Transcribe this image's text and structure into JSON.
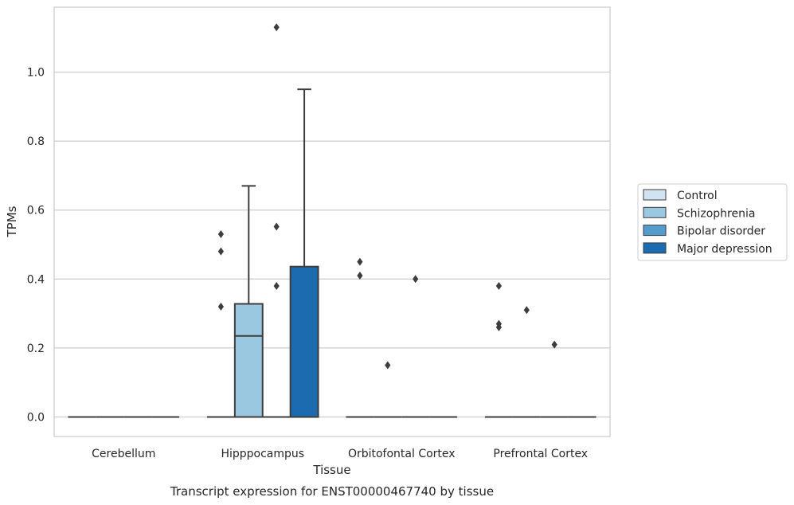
{
  "chart_data": {
    "type": "box",
    "xlabel": "Tissue",
    "ylabel": "TPMs",
    "caption": "Transcript expression for ENST00000467740 by tissue",
    "ylim": [
      -0.055,
      1.19
    ],
    "yticks": [
      "0.0",
      "0.2",
      "0.4",
      "0.6",
      "0.8",
      "1.0"
    ],
    "ytick_values": [
      0.0,
      0.2,
      0.4,
      0.6,
      0.8,
      1.0
    ],
    "grid": "horizontal",
    "legend_position": "right",
    "categories": [
      "Cerebellum",
      "Hipppocampus",
      "Orbitofontal Cortex",
      "Prefrontal Cortex"
    ],
    "series": [
      {
        "name": "Control",
        "color": "#d1e3f3"
      },
      {
        "name": "Schizophrenia",
        "color": "#9ac8e0"
      },
      {
        "name": "Bipolar disorder",
        "color": "#529dcc"
      },
      {
        "name": "Major depression",
        "color": "#1c6aaf"
      }
    ],
    "boxes": [
      {
        "category": "Cerebellum",
        "series": "Control",
        "q1": 0,
        "median": 0,
        "q3": 0,
        "whisker_low": 0,
        "whisker_high": 0,
        "outliers": []
      },
      {
        "category": "Cerebellum",
        "series": "Schizophrenia",
        "q1": 0,
        "median": 0,
        "q3": 0,
        "whisker_low": 0,
        "whisker_high": 0,
        "outliers": []
      },
      {
        "category": "Cerebellum",
        "series": "Bipolar disorder",
        "q1": 0,
        "median": 0,
        "q3": 0,
        "whisker_low": 0,
        "whisker_high": 0,
        "outliers": []
      },
      {
        "category": "Cerebellum",
        "series": "Major depression",
        "q1": 0,
        "median": 0,
        "q3": 0,
        "whisker_low": 0,
        "whisker_high": 0,
        "outliers": []
      },
      {
        "category": "Hipppocampus",
        "series": "Control",
        "q1": 0,
        "median": 0,
        "q3": 0,
        "whisker_low": 0,
        "whisker_high": 0,
        "outliers": [
          0.32,
          0.48,
          0.53
        ]
      },
      {
        "category": "Hipppocampus",
        "series": "Schizophrenia",
        "q1": 0,
        "median": 0.235,
        "q3": 0.328,
        "whisker_low": 0,
        "whisker_high": 0.67,
        "outliers": []
      },
      {
        "category": "Hipppocampus",
        "series": "Bipolar disorder",
        "q1": 0,
        "median": 0,
        "q3": 0,
        "whisker_low": 0,
        "whisker_high": 0,
        "outliers": [
          0.38,
          0.552,
          1.13
        ]
      },
      {
        "category": "Hipppocampus",
        "series": "Major depression",
        "q1": 0,
        "median": 0,
        "q3": 0.436,
        "whisker_low": 0,
        "whisker_high": 0.95,
        "outliers": []
      },
      {
        "category": "Orbitofontal Cortex",
        "series": "Control",
        "q1": 0,
        "median": 0,
        "q3": 0,
        "whisker_low": 0,
        "whisker_high": 0,
        "outliers": [
          0.41,
          0.45
        ]
      },
      {
        "category": "Orbitofontal Cortex",
        "series": "Schizophrenia",
        "q1": 0,
        "median": 0,
        "q3": 0,
        "whisker_low": 0,
        "whisker_high": 0,
        "outliers": [
          0.15
        ]
      },
      {
        "category": "Orbitofontal Cortex",
        "series": "Bipolar disorder",
        "q1": 0,
        "median": 0,
        "q3": 0,
        "whisker_low": 0,
        "whisker_high": 0,
        "outliers": [
          0.4
        ]
      },
      {
        "category": "Orbitofontal Cortex",
        "series": "Major depression",
        "q1": 0,
        "median": 0,
        "q3": 0,
        "whisker_low": 0,
        "whisker_high": 0,
        "outliers": []
      },
      {
        "category": "Prefrontal Cortex",
        "series": "Control",
        "q1": 0,
        "median": 0,
        "q3": 0,
        "whisker_low": 0,
        "whisker_high": 0,
        "outliers": [
          0.26,
          0.27,
          0.38
        ]
      },
      {
        "category": "Prefrontal Cortex",
        "series": "Schizophrenia",
        "q1": 0,
        "median": 0,
        "q3": 0,
        "whisker_low": 0,
        "whisker_high": 0,
        "outliers": [
          0.31
        ]
      },
      {
        "category": "Prefrontal Cortex",
        "series": "Bipolar disorder",
        "q1": 0,
        "median": 0,
        "q3": 0,
        "whisker_low": 0,
        "whisker_high": 0,
        "outliers": [
          0.21
        ]
      },
      {
        "category": "Prefrontal Cortex",
        "series": "Major depression",
        "q1": 0,
        "median": 0,
        "q3": 0,
        "whisker_low": 0,
        "whisker_high": 0,
        "outliers": []
      }
    ]
  }
}
